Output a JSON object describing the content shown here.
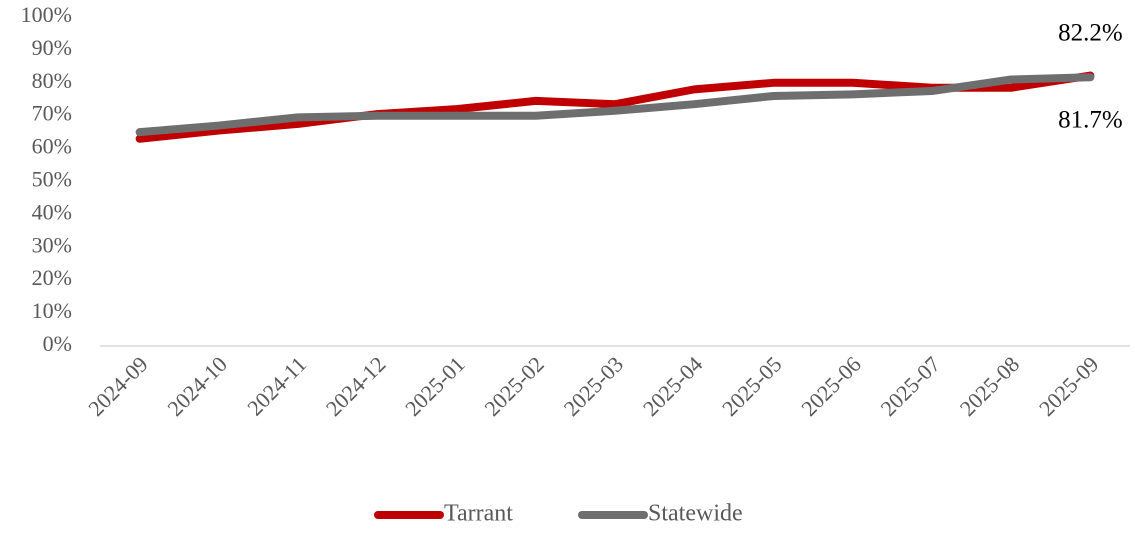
{
  "chart_data": {
    "type": "line",
    "categories": [
      "2024-09",
      "2024-10",
      "2024-11",
      "2024-12",
      "2025-01",
      "2025-02",
      "2025-03",
      "2025-04",
      "2025-05",
      "2025-06",
      "2025-07",
      "2025-08",
      "2025-09"
    ],
    "series": [
      {
        "name": "Tarrant",
        "color": "#c00000",
        "values": [
          63,
          65.5,
          67.5,
          70.5,
          72,
          74.5,
          73.5,
          78,
          80,
          80,
          78.5,
          78.5,
          82.2
        ],
        "value_labels": [
          null,
          null,
          null,
          null,
          null,
          null,
          null,
          null,
          null,
          null,
          null,
          null,
          "82.2%"
        ]
      },
      {
        "name": "Statewide",
        "color": "#6e6e6e",
        "values": [
          65,
          67,
          69.5,
          70,
          70,
          70,
          71.5,
          73.5,
          76,
          76.5,
          77.5,
          81,
          81.7
        ],
        "value_labels": [
          null,
          null,
          null,
          null,
          null,
          null,
          null,
          null,
          null,
          null,
          null,
          null,
          "81.7%"
        ]
      }
    ],
    "ylim": [
      0,
      100
    ],
    "yticks": [
      {
        "value": 0,
        "label": "0%"
      },
      {
        "value": 10,
        "label": "10%"
      },
      {
        "value": 20,
        "label": "20%"
      },
      {
        "value": 30,
        "label": "30%"
      },
      {
        "value": 40,
        "label": "40%"
      },
      {
        "value": 50,
        "label": "50%"
      },
      {
        "value": 60,
        "label": "60%"
      },
      {
        "value": 70,
        "label": "70%"
      },
      {
        "value": 80,
        "label": "80%"
      },
      {
        "value": 90,
        "label": "90%"
      },
      {
        "value": 100,
        "label": "100%"
      }
    ],
    "grid": false,
    "legend": "bottom"
  }
}
